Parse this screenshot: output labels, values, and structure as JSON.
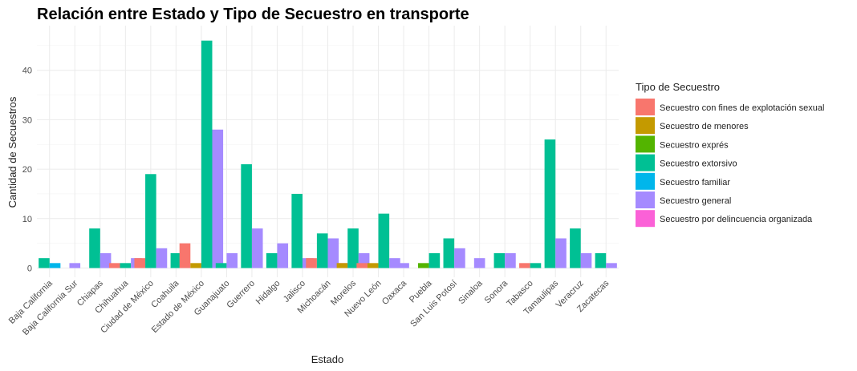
{
  "chart_data": {
    "type": "bar",
    "title": "Relación entre Estado y Tipo de Secuestro en transporte",
    "xlabel": "Estado",
    "ylabel": "Cantidad de Secuestros",
    "ylim": [
      0,
      48
    ],
    "yticks": [
      "0",
      "10",
      "20",
      "30",
      "40"
    ],
    "grid": true,
    "legend_title": "Tipo de Secuestro",
    "legend_position": "right",
    "categories": [
      "Baja California",
      "Baja California Sur",
      "Chiapas",
      "Chihuahua",
      "Ciudad de México",
      "Coahuila",
      "Estado de México",
      "Guanajuato",
      "Guerrero",
      "Hidalgo",
      "Jalisco",
      "Michoacán",
      "Morelos",
      "Nuevo León",
      "Oaxaca",
      "Puebla",
      "San Luis Potosí",
      "Sinaloa",
      "Sonora",
      "Tabasco",
      "Tamaulipas",
      "Veracruz",
      "Zacatecas"
    ],
    "series": [
      {
        "name": "Secuestro con fines de explotación sexual",
        "color": "#F8766D"
      },
      {
        "name": "Secuestro de menores",
        "color": "#C49A00"
      },
      {
        "name": "Secuestro exprés",
        "color": "#53B400"
      },
      {
        "name": "Secuestro extorsivo",
        "color": "#00C094"
      },
      {
        "name": "Secuestro familiar",
        "color": "#00B6EB"
      },
      {
        "name": "Secuestro general",
        "color": "#A58AFF"
      },
      {
        "name": "Secuestro por delincuencia organizada",
        "color": "#FB61D7"
      }
    ],
    "bars": [
      {
        "category": "Baja California",
        "types": [
          "Secuestro extorsivo",
          "Secuestro familiar"
        ],
        "values": [
          2,
          1
        ]
      },
      {
        "category": "Baja California Sur",
        "types": [
          "Secuestro general"
        ],
        "values": [
          1
        ]
      },
      {
        "category": "Chiapas",
        "types": [
          "Secuestro extorsivo",
          "Secuestro general"
        ],
        "values": [
          8,
          3
        ]
      },
      {
        "category": "Chihuahua",
        "types": [
          "Secuestro con fines de explotación sexual",
          "Secuestro extorsivo",
          "Secuestro general"
        ],
        "values": [
          1,
          1,
          2
        ]
      },
      {
        "category": "Ciudad de México",
        "types": [
          "Secuestro con fines de explotación sexual",
          "Secuestro extorsivo",
          "Secuestro general"
        ],
        "values": [
          2,
          19,
          4
        ]
      },
      {
        "category": "Coahuila",
        "types": [
          "Secuestro extorsivo"
        ],
        "values": [
          3
        ]
      },
      {
        "category": "Estado de México",
        "types": [
          "Secuestro con fines de explotación sexual",
          "Secuestro de menores",
          "Secuestro extorsivo",
          "Secuestro general"
        ],
        "values": [
          5,
          1,
          46,
          28
        ]
      },
      {
        "category": "Guanajuato",
        "types": [
          "Secuestro extorsivo",
          "Secuestro general"
        ],
        "values": [
          1,
          3
        ]
      },
      {
        "category": "Guerrero",
        "types": [
          "Secuestro extorsivo",
          "Secuestro general"
        ],
        "values": [
          21,
          8
        ]
      },
      {
        "category": "Hidalgo",
        "types": [
          "Secuestro extorsivo",
          "Secuestro general"
        ],
        "values": [
          3,
          5
        ]
      },
      {
        "category": "Jalisco",
        "types": [
          "Secuestro extorsivo",
          "Secuestro general"
        ],
        "values": [
          15,
          2
        ]
      },
      {
        "category": "Michoacán",
        "types": [
          "Secuestro con fines de explotación sexual",
          "Secuestro extorsivo",
          "Secuestro general",
          "Secuestro por delincuencia organizada"
        ],
        "values": [
          2,
          7,
          6,
          1
        ]
      },
      {
        "category": "Morelos",
        "types": [
          "Secuestro de menores",
          "Secuestro extorsivo",
          "Secuestro general"
        ],
        "values": [
          1,
          8,
          3
        ]
      },
      {
        "category": "Nuevo León",
        "types": [
          "Secuestro con fines de explotación sexual",
          "Secuestro de menores",
          "Secuestro extorsivo",
          "Secuestro general"
        ],
        "values": [
          1,
          1,
          11,
          2
        ]
      },
      {
        "category": "Oaxaca",
        "types": [
          "Secuestro general"
        ],
        "values": [
          1
        ]
      },
      {
        "category": "Puebla",
        "types": [
          "Secuestro exprés",
          "Secuestro extorsivo"
        ],
        "values": [
          1,
          3
        ]
      },
      {
        "category": "San Luis Potosí",
        "types": [
          "Secuestro extorsivo",
          "Secuestro general"
        ],
        "values": [
          6,
          4
        ]
      },
      {
        "category": "Sinaloa",
        "types": [
          "Secuestro general"
        ],
        "values": [
          2
        ]
      },
      {
        "category": "Sonora",
        "types": [
          "Secuestro extorsivo",
          "Secuestro general"
        ],
        "values": [
          3,
          3
        ]
      },
      {
        "category": "Tabasco",
        "types": [
          "Secuestro con fines de explotación sexual",
          "Secuestro extorsivo"
        ],
        "values": [
          1,
          1
        ]
      },
      {
        "category": "Tamaulipas",
        "types": [
          "Secuestro extorsivo",
          "Secuestro general"
        ],
        "values": [
          26,
          6
        ]
      },
      {
        "category": "Veracruz",
        "types": [
          "Secuestro extorsivo",
          "Secuestro general"
        ],
        "values": [
          8,
          3
        ]
      },
      {
        "category": "Zacatecas",
        "types": [
          "Secuestro extorsivo",
          "Secuestro general"
        ],
        "values": [
          3,
          1
        ]
      }
    ]
  }
}
